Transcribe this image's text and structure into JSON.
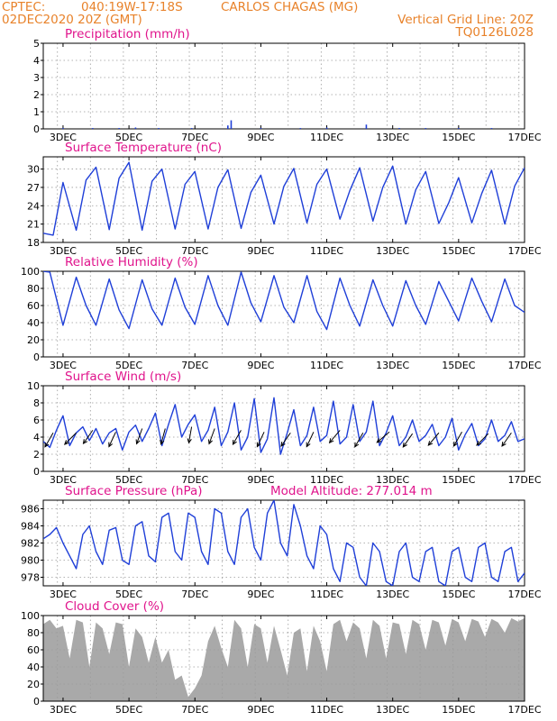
{
  "header": {
    "source": "CPTEC:",
    "location": "040:19W-17:18S",
    "station": "CARLOS CHAGAS (MG)",
    "datetime": "02DEC2020 20Z (GMT)",
    "grid_note": "Vertical Grid Line: 20Z",
    "model": "TQ0126L028"
  },
  "colors": {
    "header": "#e8822a",
    "title": "#e0148c",
    "line": "#1f3fd8",
    "cloud": "#a9a9a9",
    "arrow": "#000000"
  },
  "x_axis": {
    "tick_labels": [
      "3DEC",
      "5DEC",
      "7DEC",
      "9DEC",
      "11DEC",
      "13DEC",
      "15DEC",
      "17DEC"
    ],
    "tick_days": [
      3,
      5,
      7,
      9,
      11,
      13,
      15,
      17
    ],
    "start_day": 2.4,
    "end_day": 17.0,
    "grid_days": [
      2.83,
      3.83,
      4.83,
      5.83,
      6.83,
      7.83,
      8.83,
      9.83,
      10.83,
      11.83,
      12.83,
      13.83,
      14.83,
      15.83,
      16.83
    ]
  },
  "chart_data": [
    {
      "type": "bar",
      "title": "Precipitation (mm/h)",
      "ylim": [
        0,
        5
      ],
      "yticks": [
        0,
        1,
        2,
        3,
        4,
        5
      ],
      "x": [
        3.0,
        3.9,
        4.7,
        5.2,
        5.9,
        6.9,
        8.0,
        8.1,
        9.0,
        10.2,
        11.0,
        12.2,
        13.2,
        14.0,
        15.0,
        16.0
      ],
      "values": [
        0.05,
        0.05,
        0.05,
        0.08,
        0.05,
        0.05,
        0.2,
        0.5,
        0.05,
        0.05,
        0.08,
        0.25,
        0.05,
        0.05,
        0.05,
        0.05
      ]
    },
    {
      "type": "line",
      "title": "Surface Temperature (nC)",
      "ylim": [
        18,
        32
      ],
      "yticks": [
        18,
        21,
        24,
        27,
        30
      ],
      "x": [
        2.4,
        2.7,
        3.0,
        3.4,
        3.7,
        4.0,
        4.4,
        4.7,
        5.0,
        5.4,
        5.7,
        6.0,
        6.4,
        6.7,
        7.0,
        7.4,
        7.7,
        8.0,
        8.4,
        8.7,
        9.0,
        9.4,
        9.7,
        10.0,
        10.4,
        10.7,
        11.0,
        11.4,
        11.7,
        12.0,
        12.4,
        12.7,
        13.0,
        13.4,
        13.7,
        14.0,
        14.4,
        14.7,
        15.0,
        15.4,
        15.7,
        16.0,
        16.4,
        16.7,
        17.0
      ],
      "values": [
        19.5,
        19.2,
        27.8,
        20.0,
        28.2,
        30.3,
        20.1,
        28.5,
        31.1,
        20.0,
        28.0,
        30.0,
        20.2,
        27.5,
        29.6,
        20.2,
        27.0,
        29.9,
        20.3,
        26.2,
        29.0,
        21.0,
        27.2,
        30.1,
        21.2,
        27.5,
        30.0,
        21.8,
        26.5,
        30.2,
        21.5,
        27.0,
        30.5,
        21.0,
        26.6,
        29.6,
        21.1,
        24.5,
        28.6,
        21.2,
        26.0,
        29.8,
        21.0,
        27.2,
        30.2
      ]
    },
    {
      "type": "line",
      "title": "Relative Humidity (%)",
      "ylim": [
        0,
        100
      ],
      "yticks": [
        0,
        20,
        40,
        60,
        80,
        100
      ],
      "x": [
        2.4,
        2.6,
        3.0,
        3.4,
        3.7,
        4.0,
        4.4,
        4.7,
        5.0,
        5.4,
        5.7,
        6.0,
        6.4,
        6.7,
        7.0,
        7.4,
        7.7,
        8.0,
        8.4,
        8.7,
        9.0,
        9.4,
        9.7,
        10.0,
        10.4,
        10.7,
        11.0,
        11.4,
        11.7,
        12.0,
        12.4,
        12.7,
        13.0,
        13.4,
        13.7,
        14.0,
        14.4,
        14.7,
        15.0,
        15.4,
        15.7,
        16.0,
        16.4,
        16.7,
        17.0
      ],
      "values": [
        100,
        99,
        37,
        93,
        60,
        37,
        91,
        55,
        33,
        90,
        56,
        37,
        92,
        58,
        38,
        95,
        60,
        37,
        99,
        63,
        41,
        95,
        58,
        40,
        95,
        53,
        32,
        92,
        60,
        36,
        90,
        60,
        36,
        89,
        60,
        38,
        88,
        65,
        42,
        92,
        65,
        41,
        91,
        60,
        52
      ]
    },
    {
      "type": "line",
      "title": "Surface Wind (m/s)",
      "ylim": [
        0,
        10
      ],
      "yticks": [
        0,
        2,
        4,
        6,
        8,
        10
      ],
      "x": [
        2.4,
        2.6,
        2.8,
        3.0,
        3.2,
        3.4,
        3.6,
        3.8,
        4.0,
        4.2,
        4.4,
        4.6,
        4.8,
        5.0,
        5.2,
        5.4,
        5.6,
        5.8,
        6.0,
        6.2,
        6.4,
        6.6,
        6.8,
        7.0,
        7.2,
        7.4,
        7.6,
        7.8,
        8.0,
        8.2,
        8.4,
        8.6,
        8.8,
        9.0,
        9.2,
        9.4,
        9.6,
        9.8,
        10.0,
        10.2,
        10.4,
        10.6,
        10.8,
        11.0,
        11.2,
        11.4,
        11.6,
        11.8,
        12.0,
        12.2,
        12.4,
        12.6,
        12.8,
        13.0,
        13.2,
        13.4,
        13.6,
        13.8,
        14.0,
        14.2,
        14.4,
        14.6,
        14.8,
        15.0,
        15.2,
        15.4,
        15.6,
        15.8,
        16.0,
        16.2,
        16.4,
        16.6,
        16.8,
        17.0
      ],
      "values": [
        3.5,
        2.8,
        4.8,
        6.5,
        3.0,
        4.5,
        5.2,
        3.6,
        5.0,
        3.2,
        4.5,
        5.0,
        2.5,
        4.6,
        5.4,
        3.5,
        5.0,
        6.8,
        3.0,
        5.5,
        7.8,
        4.0,
        5.5,
        6.6,
        3.5,
        4.8,
        7.5,
        3.0,
        4.6,
        8.0,
        2.5,
        4.0,
        8.5,
        2.2,
        3.8,
        8.6,
        2.0,
        4.5,
        7.2,
        3.0,
        4.2,
        7.5,
        3.5,
        4.2,
        8.2,
        3.2,
        4.0,
        7.8,
        3.5,
        4.6,
        8.2,
        3.0,
        4.5,
        6.5,
        3.0,
        4.0,
        6.0,
        3.5,
        4.2,
        5.5,
        3.0,
        4.0,
        6.2,
        2.5,
        4.3,
        5.6,
        3.0,
        3.8,
        6.0,
        3.5,
        4.2,
        5.8,
        3.5,
        3.8
      ],
      "vectors": [
        {
          "x": 2.7,
          "speed": 4.5,
          "dir_deg": 210
        },
        {
          "x": 3.4,
          "speed": 4.5,
          "dir_deg": 225
        },
        {
          "x": 3.9,
          "speed": 4.8,
          "dir_deg": 215
        },
        {
          "x": 4.6,
          "speed": 4.6,
          "dir_deg": 205
        },
        {
          "x": 5.4,
          "speed": 5.0,
          "dir_deg": 200
        },
        {
          "x": 6.1,
          "speed": 5.0,
          "dir_deg": 195
        },
        {
          "x": 6.9,
          "speed": 5.2,
          "dir_deg": 190
        },
        {
          "x": 7.6,
          "speed": 5.0,
          "dir_deg": 200
        },
        {
          "x": 8.4,
          "speed": 4.8,
          "dir_deg": 210
        },
        {
          "x": 9.1,
          "speed": 4.6,
          "dir_deg": 205
        },
        {
          "x": 9.9,
          "speed": 4.5,
          "dir_deg": 215
        },
        {
          "x": 10.6,
          "speed": 4.6,
          "dir_deg": 205
        },
        {
          "x": 11.4,
          "speed": 4.8,
          "dir_deg": 220
        },
        {
          "x": 12.1,
          "speed": 4.5,
          "dir_deg": 210
        },
        {
          "x": 12.9,
          "speed": 4.6,
          "dir_deg": 230
        },
        {
          "x": 13.6,
          "speed": 4.4,
          "dir_deg": 215
        },
        {
          "x": 14.4,
          "speed": 4.5,
          "dir_deg": 220
        },
        {
          "x": 15.1,
          "speed": 4.6,
          "dir_deg": 210
        },
        {
          "x": 15.9,
          "speed": 4.4,
          "dir_deg": 225
        },
        {
          "x": 16.6,
          "speed": 4.5,
          "dir_deg": 215
        }
      ]
    },
    {
      "type": "line",
      "title": "Surface Pressure (hPa)",
      "annotation": "Model Altitude: 277.014 m",
      "ylim": [
        977,
        987
      ],
      "yticks": [
        978,
        980,
        982,
        984,
        986
      ],
      "x": [
        2.4,
        2.6,
        2.8,
        3.0,
        3.2,
        3.4,
        3.6,
        3.8,
        4.0,
        4.2,
        4.4,
        4.6,
        4.8,
        5.0,
        5.2,
        5.4,
        5.6,
        5.8,
        6.0,
        6.2,
        6.4,
        6.6,
        6.8,
        7.0,
        7.2,
        7.4,
        7.6,
        7.8,
        8.0,
        8.2,
        8.4,
        8.6,
        8.8,
        9.0,
        9.2,
        9.4,
        9.6,
        9.8,
        10.0,
        10.2,
        10.4,
        10.6,
        10.8,
        11.0,
        11.2,
        11.4,
        11.6,
        11.8,
        12.0,
        12.2,
        12.4,
        12.6,
        12.8,
        13.0,
        13.2,
        13.4,
        13.6,
        13.8,
        14.0,
        14.2,
        14.4,
        14.6,
        14.8,
        15.0,
        15.2,
        15.4,
        15.6,
        15.8,
        16.0,
        16.2,
        16.4,
        16.6,
        16.8,
        17.0
      ],
      "values": [
        982.5,
        983.0,
        983.8,
        982.0,
        980.5,
        979.0,
        983.0,
        984.0,
        981.0,
        979.5,
        983.5,
        983.8,
        980.0,
        979.5,
        984.0,
        984.5,
        980.5,
        979.8,
        985.0,
        985.5,
        981.0,
        980.0,
        985.5,
        985.0,
        981.0,
        979.5,
        986.0,
        985.5,
        981.0,
        979.5,
        985.0,
        986.0,
        981.5,
        980.0,
        985.5,
        987.0,
        982.0,
        980.5,
        986.5,
        984.0,
        980.5,
        979.0,
        984.0,
        983.0,
        979.0,
        977.5,
        982.0,
        981.5,
        978.0,
        977.0,
        982.0,
        981.0,
        977.5,
        977.0,
        981.0,
        982.0,
        978.0,
        977.5,
        981.0,
        981.5,
        977.5,
        977.0,
        981.0,
        981.5,
        978.0,
        977.5,
        981.5,
        982.0,
        978.0,
        977.5,
        981.0,
        981.5,
        977.5,
        978.5
      ]
    },
    {
      "type": "area",
      "title": "Cloud Cover (%)",
      "ylim": [
        0,
        100
      ],
      "yticks": [
        0,
        20,
        40,
        60,
        80,
        100
      ],
      "x": [
        2.4,
        2.6,
        2.8,
        3.0,
        3.2,
        3.4,
        3.6,
        3.8,
        4.0,
        4.2,
        4.4,
        4.6,
        4.8,
        5.0,
        5.2,
        5.4,
        5.6,
        5.8,
        6.0,
        6.2,
        6.4,
        6.6,
        6.8,
        7.0,
        7.2,
        7.4,
        7.6,
        7.8,
        8.0,
        8.2,
        8.4,
        8.6,
        8.8,
        9.0,
        9.2,
        9.4,
        9.6,
        9.8,
        10.0,
        10.2,
        10.4,
        10.6,
        10.8,
        11.0,
        11.2,
        11.4,
        11.6,
        11.8,
        12.0,
        12.2,
        12.4,
        12.6,
        12.8,
        13.0,
        13.2,
        13.4,
        13.6,
        13.8,
        14.0,
        14.2,
        14.4,
        14.6,
        14.8,
        15.0,
        15.2,
        15.4,
        15.6,
        15.8,
        16.0,
        16.2,
        16.4,
        16.6,
        16.8,
        17.0
      ],
      "values": [
        90,
        95,
        85,
        88,
        50,
        95,
        92,
        40,
        92,
        85,
        55,
        92,
        90,
        40,
        85,
        75,
        45,
        75,
        45,
        60,
        25,
        30,
        5,
        15,
        30,
        70,
        88,
        62,
        40,
        95,
        85,
        40,
        90,
        85,
        45,
        88,
        60,
        30,
        80,
        85,
        35,
        88,
        70,
        35,
        90,
        95,
        70,
        92,
        85,
        50,
        95,
        88,
        50,
        92,
        90,
        55,
        95,
        90,
        60,
        95,
        92,
        65,
        96,
        92,
        70,
        96,
        93,
        75,
        96,
        92,
        80,
        97,
        93,
        97
      ]
    }
  ]
}
